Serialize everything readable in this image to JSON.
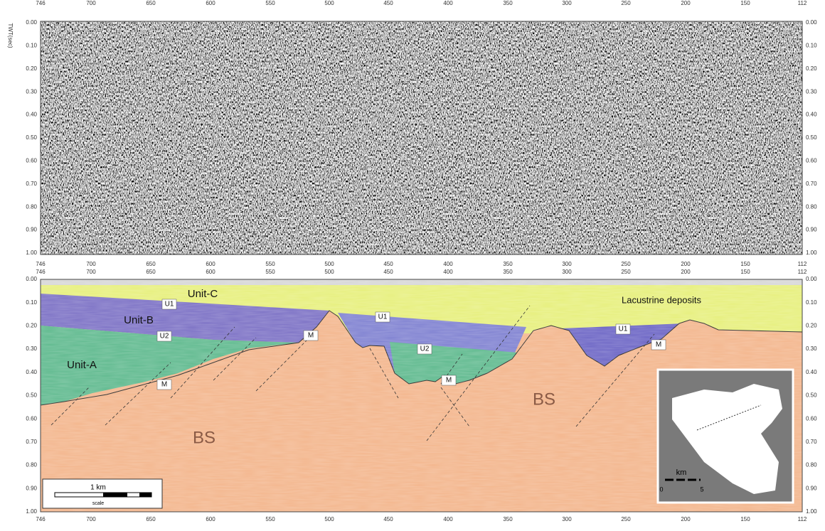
{
  "axis_label": "TWT(sec)",
  "x_ticks": [
    "746",
    "700",
    "650",
    "600",
    "550",
    "500",
    "450",
    "400",
    "350",
    "300",
    "250",
    "200",
    "150",
    "112"
  ],
  "y_ticks": [
    "0.00",
    "0.10",
    "0.20",
    "0.30",
    "0.40",
    "0.50",
    "0.60",
    "0.70",
    "0.80",
    "0.90",
    "1.00"
  ],
  "units": [
    "Unit-C",
    "Unit-B",
    "Unit-A",
    "Lacustrine deposits",
    "BS",
    "BS"
  ],
  "horizon_labels": [
    "U1",
    "U1",
    "U1",
    "U2",
    "U2",
    "M",
    "M",
    "M",
    "M"
  ],
  "scale_bar": {
    "label": "1 km",
    "caption": "scale"
  },
  "inset": {
    "unit": "km",
    "start": "0",
    "end": "5"
  }
}
